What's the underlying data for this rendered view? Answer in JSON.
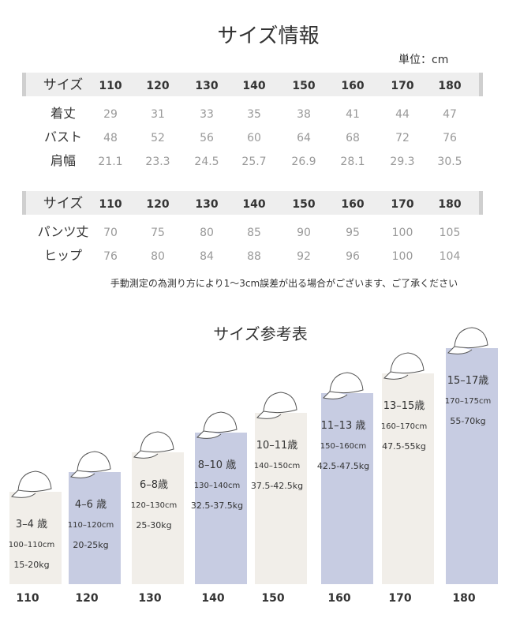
{
  "title": "サイズ情報",
  "unit": "単位：cm",
  "table1": {
    "header": [
      "サイズ",
      "110",
      "120",
      "130",
      "140",
      "150",
      "160",
      "170",
      "180"
    ],
    "rows": [
      [
        "着丈",
        "29",
        "31",
        "33",
        "35",
        "38",
        "41",
        "44",
        "47"
      ],
      [
        "バスト",
        "48",
        "52",
        "56",
        "60",
        "64",
        "68",
        "72",
        "76"
      ],
      [
        "肩幅",
        "21.1",
        "23.3",
        "24.5",
        "25.7",
        "26.9",
        "28.1",
        "29.3",
        "30.5"
      ]
    ]
  },
  "table2": {
    "header": [
      "サイズ",
      "110",
      "120",
      "130",
      "140",
      "150",
      "160",
      "170",
      "180"
    ],
    "rows": [
      [
        "パンツ丈",
        "70",
        "75",
        "80",
        "85",
        "90",
        "95",
        "100",
        "105"
      ],
      [
        "ヒップ",
        "76",
        "80",
        "84",
        "88",
        "92",
        "96",
        "100",
        "104"
      ]
    ]
  },
  "note": "手動測定の為測り方により1～3cm誤差が出る場合がございます、ご了承ください",
  "reference": {
    "title": "サイズ参考表",
    "columns": [
      {
        "size": "110",
        "age": "3–4 歳",
        "height": "100–110cm",
        "weight": "15-20kg"
      },
      {
        "size": "120",
        "age": "4–6 歳",
        "height": "110–120cm",
        "weight": "20-25kg"
      },
      {
        "size": "130",
        "age": "6–8歳",
        "height": "120–130cm",
        "weight": "25-30kg"
      },
      {
        "size": "140",
        "age": "8–10 歳",
        "height": "130–140cm",
        "weight": "32.5-37.5kg"
      },
      {
        "size": "150",
        "age": "10–11歳",
        "height": "140–150cm",
        "weight": "37.5-42.5kg"
      },
      {
        "size": "160",
        "age": "11–13 歳",
        "height": "150–160cm",
        "weight": "42.5-47.5kg"
      },
      {
        "size": "170",
        "age": "13–15歳",
        "height": "160–170cm",
        "weight": "47.5-55kg"
      },
      {
        "size": "180",
        "age": "15–17歳",
        "height": "170–175cm",
        "weight": "55-70kg"
      }
    ]
  }
}
